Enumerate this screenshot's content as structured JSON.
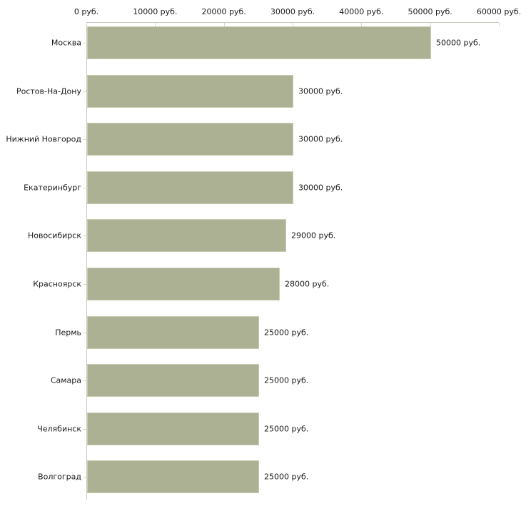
{
  "chart_data": {
    "type": "bar",
    "orientation": "horizontal",
    "unit": "руб.",
    "categories": [
      "Москва",
      "Ростов-На-Дону",
      "Нижний Новгород",
      "Екатеринбург",
      "Новосибирск",
      "Красноярск",
      "Пермь",
      "Самара",
      "Челябинск",
      "Волгоград"
    ],
    "values": [
      50000,
      30000,
      30000,
      30000,
      29000,
      28000,
      25000,
      25000,
      25000,
      25000
    ],
    "bar_value_labels": [
      "50000 руб.",
      "30000 руб.",
      "30000 руб.",
      "30000 руб.",
      "29000 руб.",
      "28000 руб.",
      "25000 руб.",
      "25000 руб.",
      "25000 руб.",
      "25000 руб."
    ],
    "x_axis": {
      "position": "top",
      "min": 0,
      "max": 60000,
      "tick_values": [
        0,
        10000,
        20000,
        30000,
        40000,
        50000,
        60000
      ],
      "tick_labels": [
        "0 руб.",
        "10000 руб.",
        "20000 руб.",
        "30000 руб.",
        "40000 руб.",
        "50000 руб.",
        "60000 руб."
      ]
    },
    "grid": false,
    "legend": false,
    "colors": {
      "bar_fill": "#acb194",
      "bar_border": "#c9ccb3",
      "axis_line": "#c9c9c1",
      "tick_mark": "#d8dabe",
      "text": "#1a1a1a",
      "background": "#ffffff"
    }
  }
}
